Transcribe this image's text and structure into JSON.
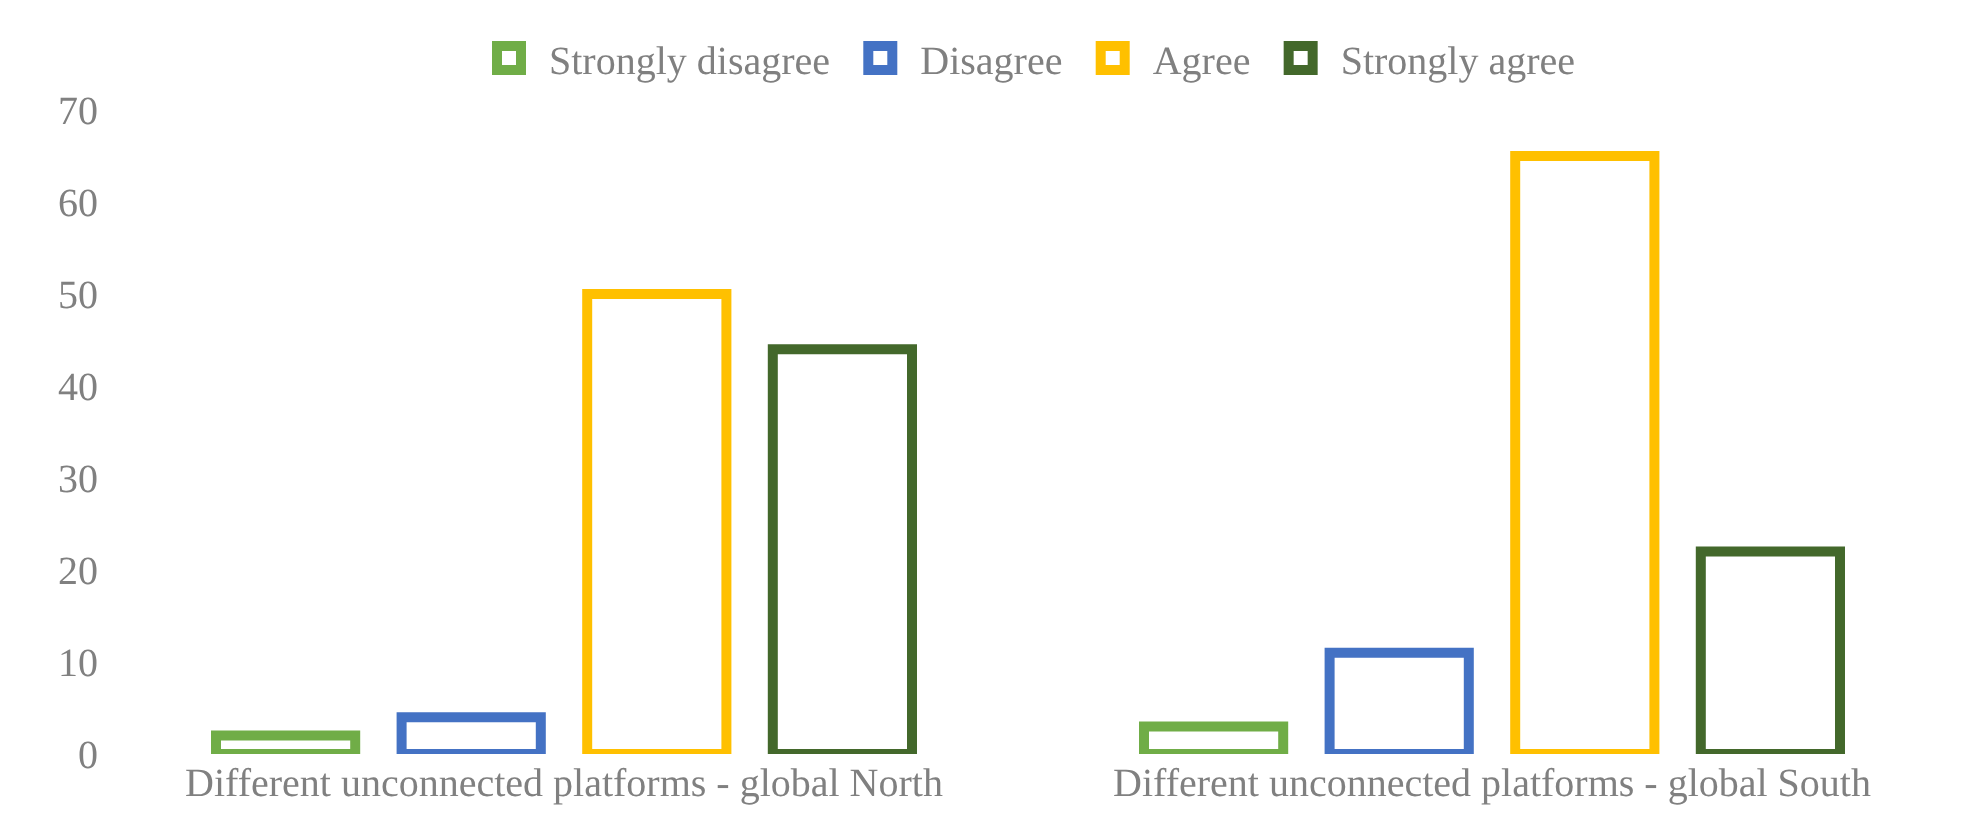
{
  "chart_data": {
    "type": "bar",
    "categories": [
      "Different unconnected platforms - global North",
      "Different unconnected platforms - global South"
    ],
    "series": [
      {
        "name": "Strongly disagree",
        "color": "#70ad47",
        "values": [
          2,
          3
        ]
      },
      {
        "name": "Disagree",
        "color": "#4472c4",
        "values": [
          4,
          11
        ]
      },
      {
        "name": "Agree",
        "color": "#ffc000",
        "values": [
          50,
          65
        ]
      },
      {
        "name": "Strongly agree",
        "color": "#43682b",
        "values": [
          44,
          22
        ]
      }
    ],
    "ylim": [
      0,
      70
    ],
    "yticks": [
      0,
      10,
      20,
      30,
      40,
      50,
      60,
      70
    ],
    "grid": false,
    "legend": "top"
  }
}
